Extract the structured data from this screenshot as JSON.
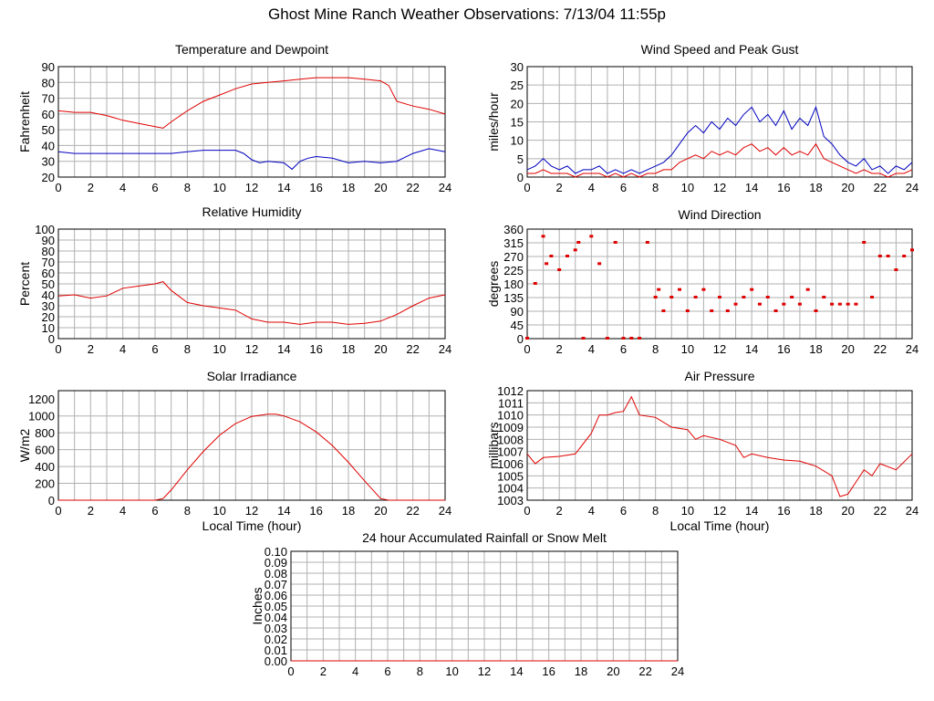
{
  "page": {
    "title": "Ghost Mine Ranch Weather Observations: 7/13/04 11:55p"
  },
  "colors": {
    "temperature": "#e00000",
    "dewpoint": "#0000c0",
    "grid": "#b0b0b0",
    "axis": "#000000"
  },
  "chart_data": [
    {
      "id": "temp",
      "type": "line",
      "title": "Temperature and Dewpoint",
      "ylabel": "Fahrenheit",
      "xlabel": "",
      "xlim": [
        0,
        24
      ],
      "ylim": [
        20,
        90
      ],
      "yticks": [
        "20",
        "30",
        "40",
        "50",
        "60",
        "70",
        "80",
        "90"
      ],
      "xticks": [
        "0",
        "2",
        "4",
        "6",
        "8",
        "10",
        "12",
        "14",
        "16",
        "18",
        "20",
        "22",
        "24"
      ],
      "grid": true,
      "series": [
        {
          "color": "#e00000",
          "x": [
            0,
            1,
            2,
            3,
            4,
            5,
            6,
            6.5,
            7,
            8,
            9,
            10,
            11,
            12,
            13,
            14,
            15,
            16,
            17,
            18,
            19,
            20,
            20.5,
            21,
            22,
            23,
            24
          ],
          "y": [
            62,
            61,
            61,
            59,
            56,
            54,
            52,
            51,
            55,
            62,
            68,
            72,
            76,
            79,
            80,
            81,
            82,
            83,
            83,
            83,
            82,
            81,
            78,
            68,
            65,
            63,
            60
          ]
        },
        {
          "color": "#0000c0",
          "x": [
            0,
            1,
            2,
            3,
            4,
            5,
            6,
            7,
            8,
            9,
            10,
            11,
            11.5,
            12,
            12.5,
            13,
            14,
            14.5,
            15,
            15.5,
            16,
            17,
            18,
            19,
            20,
            21,
            22,
            23,
            24
          ],
          "y": [
            36,
            35,
            35,
            35,
            35,
            35,
            35,
            35,
            36,
            37,
            37,
            37,
            35,
            31,
            29,
            30,
            29,
            25,
            30,
            32,
            33,
            32,
            29,
            30,
            29,
            30,
            35,
            38,
            36
          ]
        }
      ]
    },
    {
      "id": "wind",
      "type": "line",
      "title": "Wind Speed and Peak Gust",
      "ylabel": "miles/hour",
      "xlabel": "",
      "xlim": [
        0,
        24
      ],
      "ylim": [
        0,
        30
      ],
      "yticks": [
        "0",
        "5",
        "10",
        "15",
        "20",
        "25",
        "30"
      ],
      "xticks": [
        "0",
        "2",
        "4",
        "6",
        "8",
        "10",
        "12",
        "14",
        "16",
        "18",
        "20",
        "22",
        "24"
      ],
      "grid": true,
      "series": [
        {
          "color": "#0000c0",
          "x": [
            0,
            0.5,
            1,
            1.5,
            2,
            2.5,
            3,
            3.5,
            4,
            4.5,
            5,
            5.5,
            6,
            6.5,
            7,
            7.5,
            8,
            8.5,
            9,
            9.5,
            10,
            10.5,
            11,
            11.5,
            12,
            12.5,
            13,
            13.5,
            14,
            14.5,
            15,
            15.5,
            16,
            16.5,
            17,
            17.5,
            18,
            18.5,
            19,
            19.5,
            20,
            20.5,
            21,
            21.5,
            22,
            22.5,
            23,
            23.5,
            24
          ],
          "y": [
            2,
            3,
            5,
            3,
            2,
            3,
            1,
            2,
            2,
            3,
            1,
            2,
            1,
            2,
            1,
            2,
            3,
            4,
            6,
            9,
            12,
            14,
            12,
            15,
            13,
            16,
            14,
            17,
            19,
            15,
            17,
            14,
            18,
            13,
            16,
            14,
            19,
            11,
            9,
            6,
            4,
            3,
            5,
            2,
            3,
            1,
            3,
            2,
            4
          ]
        },
        {
          "color": "#e00000",
          "x": [
            0,
            0.5,
            1,
            1.5,
            2,
            2.5,
            3,
            3.5,
            4,
            4.5,
            5,
            5.5,
            6,
            6.5,
            7,
            7.5,
            8,
            8.5,
            9,
            9.5,
            10,
            10.5,
            11,
            11.5,
            12,
            12.5,
            13,
            13.5,
            14,
            14.5,
            15,
            15.5,
            16,
            16.5,
            17,
            17.5,
            18,
            18.5,
            19,
            19.5,
            20,
            20.5,
            21,
            21.5,
            22,
            22.5,
            23,
            23.5,
            24
          ],
          "y": [
            1,
            1,
            2,
            1,
            1,
            1,
            0,
            1,
            1,
            1,
            0,
            1,
            0,
            1,
            0,
            1,
            1,
            2,
            2,
            4,
            5,
            6,
            5,
            7,
            6,
            7,
            6,
            8,
            9,
            7,
            8,
            6,
            8,
            6,
            7,
            6,
            9,
            5,
            4,
            3,
            2,
            1,
            2,
            1,
            1,
            0,
            1,
            1,
            2
          ]
        }
      ]
    },
    {
      "id": "rh",
      "type": "line",
      "title": "Relative Humidity",
      "ylabel": "Percent",
      "xlabel": "",
      "xlim": [
        0,
        24
      ],
      "ylim": [
        0,
        100
      ],
      "yticks": [
        "0",
        "10",
        "20",
        "30",
        "40",
        "50",
        "60",
        "70",
        "80",
        "90",
        "100"
      ],
      "xticks": [
        "0",
        "2",
        "4",
        "6",
        "8",
        "10",
        "12",
        "14",
        "16",
        "18",
        "20",
        "22",
        "24"
      ],
      "grid": true,
      "series": [
        {
          "color": "#e00000",
          "x": [
            0,
            1,
            2,
            3,
            4,
            5,
            6,
            6.5,
            7,
            8,
            9,
            10,
            11,
            12,
            13,
            14,
            15,
            16,
            17,
            18,
            19,
            20,
            21,
            22,
            23,
            24
          ],
          "y": [
            39,
            40,
            37,
            39,
            46,
            48,
            50,
            52,
            44,
            33,
            30,
            28,
            26,
            18,
            15,
            15,
            13,
            15,
            15,
            13,
            14,
            16,
            22,
            30,
            37,
            40
          ]
        }
      ]
    },
    {
      "id": "wdir",
      "type": "scatter",
      "title": "Wind Direction",
      "ylabel": "degrees",
      "xlabel": "",
      "xlim": [
        0,
        24
      ],
      "ylim": [
        0,
        360
      ],
      "yticks": [
        "0",
        "45",
        "90",
        "135",
        "180",
        "225",
        "270",
        "315",
        "360"
      ],
      "xticks": [
        "0",
        "2",
        "4",
        "6",
        "8",
        "10",
        "12",
        "14",
        "16",
        "18",
        "20",
        "22",
        "24"
      ],
      "grid": true,
      "series": [
        {
          "color": "#e00000",
          "x": [
            0,
            0.5,
            1,
            1.2,
            1.5,
            2,
            2.5,
            3,
            3.2,
            3.5,
            4,
            4.5,
            5,
            5.5,
            6,
            6.5,
            7,
            7.5,
            8,
            8.2,
            8.5,
            9,
            9.5,
            10,
            10.5,
            11,
            11.5,
            12,
            12.5,
            13,
            13.5,
            14,
            14.5,
            15,
            15.5,
            16,
            16.5,
            17,
            17.5,
            18,
            18.5,
            19,
            19.5,
            20,
            20.5,
            21,
            21.5,
            22,
            22.5,
            23,
            23.5,
            24
          ],
          "y": [
            0,
            180,
            335,
            245,
            270,
            225,
            270,
            290,
            315,
            0,
            335,
            245,
            0,
            315,
            0,
            0,
            0,
            315,
            135,
            160,
            90,
            135,
            160,
            90,
            135,
            160,
            90,
            135,
            90,
            112,
            135,
            160,
            112,
            135,
            90,
            112,
            135,
            112,
            160,
            90,
            135,
            112,
            112,
            112,
            112,
            315,
            135,
            270,
            270,
            225,
            270,
            290
          ]
        }
      ]
    },
    {
      "id": "solar",
      "type": "line",
      "title": "Solar Irradiance",
      "ylabel": "W/m2",
      "xlabel": "Local Time (hour)",
      "xlim": [
        0,
        24
      ],
      "ylim": [
        0,
        1300
      ],
      "yticks": [
        "0",
        "200",
        "400",
        "600",
        "800",
        "1000",
        "1200"
      ],
      "xticks": [
        "0",
        "2",
        "4",
        "6",
        "8",
        "10",
        "12",
        "14",
        "16",
        "18",
        "20",
        "22",
        "24"
      ],
      "grid": true,
      "series": [
        {
          "color": "#e00000",
          "x": [
            0,
            6,
            6.5,
            7,
            8,
            9,
            10,
            11,
            12,
            13,
            13.5,
            14,
            15,
            16,
            17,
            18,
            19,
            20,
            20.5,
            24
          ],
          "y": [
            0,
            0,
            20,
            120,
            360,
            580,
            770,
            910,
            995,
            1020,
            1020,
            1000,
            930,
            810,
            650,
            450,
            230,
            20,
            0,
            0
          ]
        }
      ]
    },
    {
      "id": "pressure",
      "type": "line",
      "title": "Air Pressure",
      "ylabel": "millibars",
      "xlabel": "Local Time (hour)",
      "xlim": [
        0,
        24
      ],
      "ylim": [
        1003,
        1012
      ],
      "yticks": [
        "1003",
        "1004",
        "1005",
        "1006",
        "1007",
        "1008",
        "1009",
        "1010",
        "1011",
        "1012"
      ],
      "xticks": [
        "0",
        "2",
        "4",
        "6",
        "8",
        "10",
        "12",
        "14",
        "16",
        "18",
        "20",
        "22",
        "24"
      ],
      "grid": true,
      "series": [
        {
          "color": "#e00000",
          "x": [
            0,
            0.5,
            1,
            2,
            3,
            4,
            4.5,
            5,
            5.5,
            6,
            6.5,
            7,
            8,
            9,
            10,
            10.5,
            11,
            12,
            13,
            13.5,
            14,
            15,
            16,
            17,
            18,
            19,
            19.5,
            20,
            20.5,
            21,
            21.5,
            22,
            23,
            24
          ],
          "y": [
            1006.8,
            1006,
            1006.5,
            1006.6,
            1006.8,
            1008.5,
            1010,
            1010,
            1010.2,
            1010.3,
            1011.5,
            1010,
            1009.8,
            1009,
            1008.8,
            1008,
            1008.3,
            1008,
            1007.5,
            1006.5,
            1006.8,
            1006.5,
            1006.3,
            1006.2,
            1005.8,
            1005,
            1003.3,
            1003.5,
            1004.5,
            1005.5,
            1005,
            1006,
            1005.5,
            1006.8
          ]
        }
      ]
    },
    {
      "id": "rain",
      "type": "line",
      "title": "24 hour Accumulated Rainfall or Snow Melt",
      "ylabel": "Inches",
      "xlabel": "",
      "xlim": [
        0,
        24
      ],
      "ylim": [
        0,
        0.1
      ],
      "yticks": [
        "0.00",
        "0.01",
        "0.02",
        "0.03",
        "0.04",
        "0.05",
        "0.06",
        "0.07",
        "0.08",
        "0.09",
        "0.10"
      ],
      "xticks": [
        "0",
        "2",
        "4",
        "6",
        "8",
        "10",
        "12",
        "14",
        "16",
        "18",
        "20",
        "22",
        "24"
      ],
      "grid": true,
      "series": [
        {
          "color": "#e00000",
          "x": [
            0,
            24
          ],
          "y": [
            0,
            0
          ]
        }
      ]
    }
  ]
}
